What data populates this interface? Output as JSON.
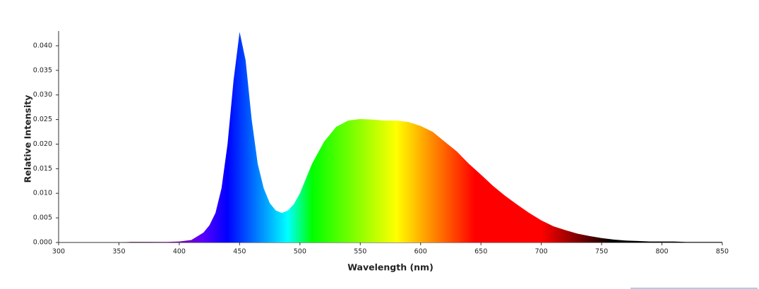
{
  "chart_data": {
    "type": "area",
    "x_label": "Wavelength (nm)",
    "y_label": "Relative Intensity",
    "x": [
      300,
      310,
      320,
      330,
      340,
      350,
      360,
      370,
      380,
      390,
      400,
      410,
      420,
      425,
      430,
      435,
      440,
      445,
      450,
      455,
      460,
      465,
      470,
      475,
      480,
      485,
      490,
      495,
      500,
      510,
      520,
      530,
      540,
      550,
      560,
      570,
      580,
      590,
      600,
      610,
      620,
      630,
      640,
      650,
      660,
      670,
      680,
      690,
      700,
      710,
      720,
      730,
      740,
      750,
      760,
      770,
      780,
      790,
      800,
      810,
      820,
      830,
      840,
      850
    ],
    "values": [
      0,
      0,
      0,
      0,
      0,
      0,
      0.0001,
      0.0001,
      0.0001,
      0.0001,
      0.0002,
      0.0005,
      0.002,
      0.0035,
      0.006,
      0.011,
      0.02,
      0.033,
      0.0428,
      0.037,
      0.025,
      0.016,
      0.011,
      0.008,
      0.0065,
      0.006,
      0.0065,
      0.0078,
      0.01,
      0.016,
      0.0205,
      0.0235,
      0.0248,
      0.0251,
      0.025,
      0.0248,
      0.0248,
      0.0245,
      0.0237,
      0.0225,
      0.0205,
      0.0185,
      0.016,
      0.0138,
      0.0115,
      0.0095,
      0.0077,
      0.006,
      0.0045,
      0.0033,
      0.0025,
      0.0018,
      0.0013,
      0.0009,
      0.0006,
      0.0004,
      0.0003,
      0.0002,
      0.0002,
      0.0002,
      0.0001,
      0.0001,
      0.0001,
      0.0001
    ],
    "xlim": [
      300,
      850
    ],
    "xticks": [
      300,
      350,
      400,
      450,
      500,
      550,
      600,
      650,
      700,
      750,
      800,
      850
    ],
    "ylim": [
      0,
      0.043
    ],
    "yticks": [
      {
        "value": 0,
        "label": "0.000"
      },
      {
        "value": 0.005,
        "label": "0.005"
      },
      {
        "value": 0.01,
        "label": "0.010"
      },
      {
        "value": 0.015,
        "label": "0.015"
      },
      {
        "value": 0.02,
        "label": "0.020"
      },
      {
        "value": 0.025,
        "label": "0.025"
      },
      {
        "value": 0.03,
        "label": "0.030"
      },
      {
        "value": 0.035,
        "label": "0.035"
      },
      {
        "value": 0.04,
        "label": "0.040"
      }
    ]
  }
}
